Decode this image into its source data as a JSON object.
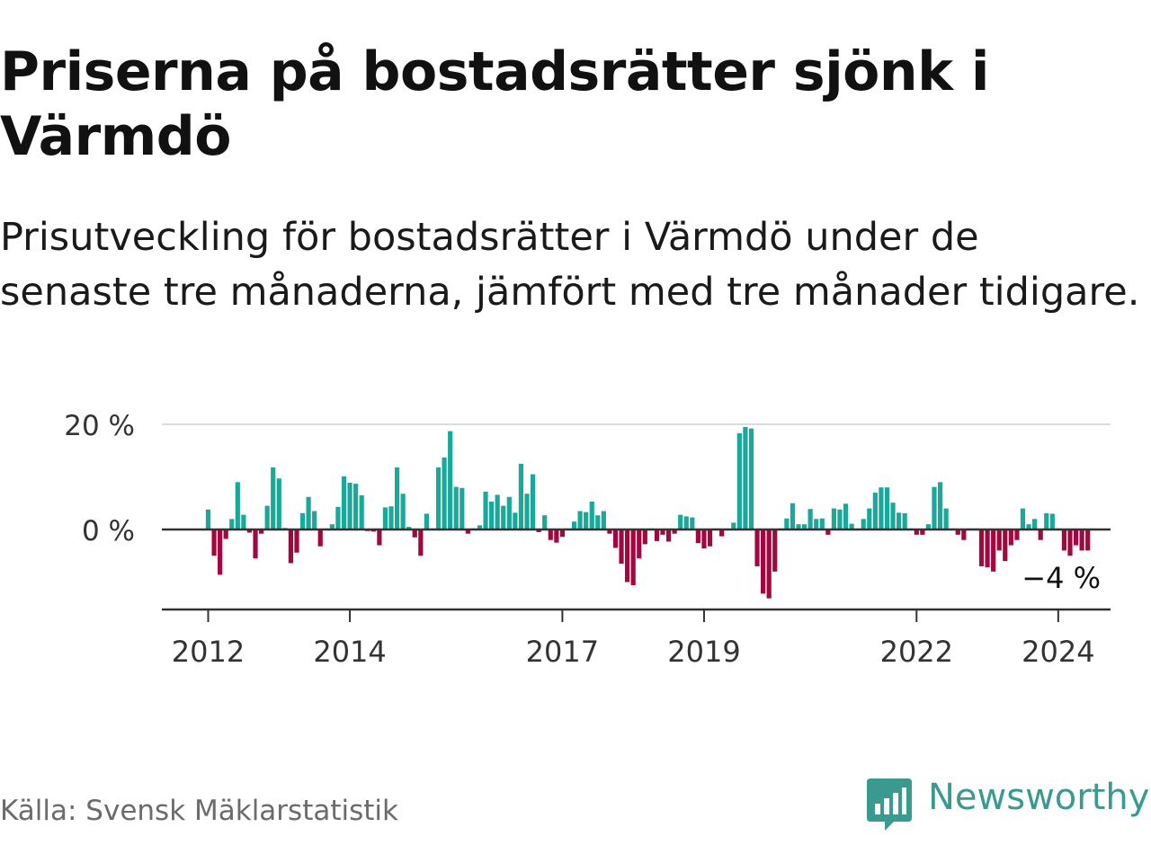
{
  "colors": {
    "positive": "#1aa89a",
    "negative": "#a3073f",
    "grid": "#dcdcdc",
    "axis": "#333333",
    "brand": "#3a9a8f"
  },
  "chart_data": {
    "type": "bar",
    "title": "Priserna på bostadsrätter sjönk i Värmdö",
    "subtitle": "Prisutveckling för bostadsrätter i Värmdö under de senaste tre månaderna, jämfört med tre månader tidigare.",
    "ylabel": "",
    "xlabel": "",
    "ylim": [
      -15,
      20
    ],
    "y_ticks": [
      {
        "value": 0,
        "label": "0 %"
      },
      {
        "value": 20,
        "label": "20 %"
      }
    ],
    "x_ticks": [
      {
        "index": 0,
        "label": "2012"
      },
      {
        "index": 24,
        "label": "2014"
      },
      {
        "index": 60,
        "label": "2017"
      },
      {
        "index": 84,
        "label": "2019"
      },
      {
        "index": 120,
        "label": "2022"
      },
      {
        "index": 144,
        "label": "2024"
      }
    ],
    "start": "2012-01",
    "unit": "%",
    "values": [
      3.8,
      -5.0,
      -8.6,
      -1.8,
      2.0,
      9.0,
      2.8,
      -0.6,
      -5.5,
      -0.8,
      4.5,
      11.8,
      9.7,
      0.3,
      -6.4,
      -4.4,
      3.1,
      6.2,
      3.5,
      -3.2,
      0.2,
      1.0,
      4.3,
      10.1,
      8.9,
      8.7,
      6.5,
      -0.3,
      -0.4,
      -3.0,
      4.2,
      4.4,
      11.8,
      6.8,
      0.5,
      -1.5,
      -5.0,
      3.0,
      0.2,
      11.8,
      13.7,
      18.7,
      8.1,
      7.9,
      -0.8,
      0.2,
      0.8,
      7.2,
      5.3,
      6.6,
      4.5,
      6.2,
      3.2,
      12.5,
      6.8,
      10.5,
      -0.5,
      2.7,
      -2.0,
      -2.5,
      -1.4,
      0.2,
      1.5,
      3.5,
      3.3,
      5.3,
      2.7,
      3.5,
      -0.8,
      -3.5,
      -6.5,
      -10.0,
      -10.6,
      -5.5,
      -2.8,
      0.2,
      -2.2,
      -1.0,
      -2.3,
      -0.8,
      2.8,
      2.5,
      2.3,
      -2.6,
      -3.6,
      -3.2,
      0.2,
      -1.3,
      0.2,
      1.3,
      18.3,
      19.5,
      19.2,
      -7.0,
      -12.2,
      -13.1,
      -8.0,
      0.2,
      2.1,
      5.0,
      1.0,
      1.0,
      3.9,
      2.0,
      2.1,
      -1.0,
      4.0,
      3.8,
      4.9,
      1.1,
      0.2,
      2.0,
      4.0,
      7.0,
      8.0,
      8.0,
      5.1,
      3.2,
      3.1,
      0.2,
      -1.0,
      -1.0,
      1.0,
      8.1,
      9.0,
      4.0,
      0.2,
      -1.0,
      -2.0,
      0.2,
      0.2,
      -7.0,
      -7.2,
      -8.0,
      -4.0,
      -6.0,
      -3.0,
      -2.0,
      4.0,
      1.0,
      2.0,
      -2.0,
      3.1,
      3.0,
      0.2,
      -4.0,
      -5.0,
      -3.0,
      -4.0,
      -4.0
    ],
    "last_value_label": "−4 %"
  },
  "footer": {
    "source": "Källa: Svensk Mäklarstatistik",
    "brand": "Newsworthy"
  }
}
